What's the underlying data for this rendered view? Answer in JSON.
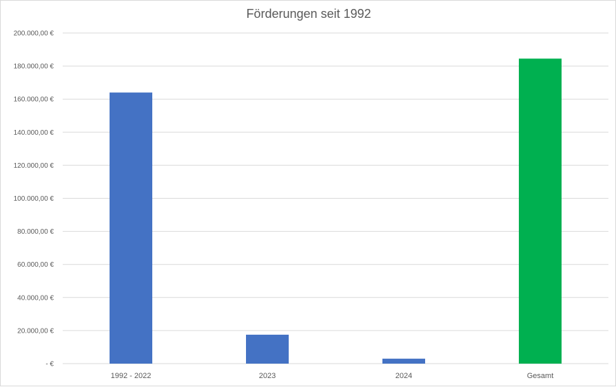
{
  "chart_data": {
    "type": "bar",
    "title": "Förderungen seit 1992",
    "xlabel": "",
    "ylabel": "",
    "categories": [
      "1992 - 2022",
      "2023",
      "2024",
      "Gesamt"
    ],
    "values": [
      164000,
      17500,
      3000,
      184500
    ],
    "bar_colors": [
      "#4472C4",
      "#4472C4",
      "#4472C4",
      "#00B050"
    ],
    "ylim": [
      0,
      200000
    ],
    "y_ticks": [
      0,
      20000,
      40000,
      60000,
      80000,
      100000,
      120000,
      140000,
      160000,
      180000,
      200000
    ],
    "y_tick_labels": [
      "-  €",
      "20.000,00 €",
      "40.000,00 €",
      "60.000,00 €",
      "80.000,00 €",
      "100.000,00 €",
      "120.000,00 €",
      "140.000,00 €",
      "160.000,00 €",
      "180.000,00 €",
      "200.000,00 €"
    ],
    "grid": true,
    "legend": "none"
  }
}
